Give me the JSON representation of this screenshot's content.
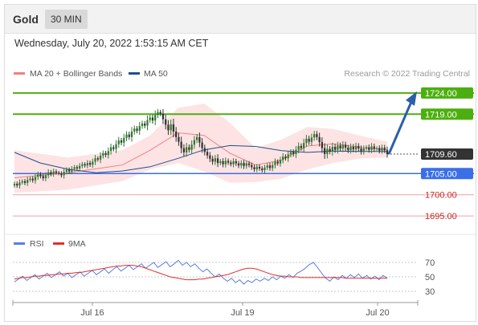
{
  "header": {
    "symbol": "Gold",
    "timeframe": "30 MIN"
  },
  "datetime": "Wednesday, July 20, 2022 1:53:15 AM CET",
  "colors": {
    "ma20": "#f08080",
    "ma50": "#1f4e8c",
    "bollinger_fill": "#fddede",
    "candle_up": "#2e7d32",
    "candle_down": "#333333",
    "resistance": "#4caf0f",
    "pivot": "#3a6fe8",
    "support": "#e04040",
    "current": "#333333",
    "arrow": "#2c5fa8",
    "rsi": "#5b7fe0",
    "rsi_ma": "#e03030"
  },
  "legend": {
    "ma20_label": "MA 20 + Bollinger Bands",
    "ma50_label": "MA 50"
  },
  "copyright": "Research © 2022 Trading Central",
  "chart_data": [
    {
      "type": "candlestick",
      "title": "",
      "x_tick_labels": [
        "Jul 16",
        "Jul 19",
        "Jul 20"
      ],
      "ylim": [
        1692,
        1727
      ],
      "levels": [
        {
          "value": 1724.0,
          "label": "1724.00",
          "kind": "resistance"
        },
        {
          "value": 1719.0,
          "label": "1719.00",
          "kind": "resistance"
        },
        {
          "value": 1709.6,
          "label": "1709.60",
          "kind": "current"
        },
        {
          "value": 1705.0,
          "label": "1705.00",
          "kind": "pivot"
        },
        {
          "value": 1700.0,
          "label": "1700.00",
          "kind": "support"
        },
        {
          "value": 1695.0,
          "label": "1695.00",
          "kind": "support"
        }
      ],
      "close": [
        1702.6,
        1702.2,
        1702.9,
        1703.2,
        1702.8,
        1703.5,
        1703.8,
        1703.4,
        1704.2,
        1704.8,
        1704.4,
        1703.9,
        1704.6,
        1705.3,
        1704.9,
        1705.5,
        1705.2,
        1705.0,
        1704.6,
        1705.4,
        1705.9,
        1705.5,
        1706.1,
        1706.5,
        1706.2,
        1706.8,
        1707.2,
        1706.9,
        1707.5,
        1707.1,
        1707.8,
        1708.6,
        1708.3,
        1709.2,
        1709.8,
        1709.4,
        1710.3,
        1711.2,
        1710.8,
        1711.9,
        1712.8,
        1712.3,
        1713.4,
        1714.2,
        1713.6,
        1714.9,
        1715.6,
        1715.1,
        1716.2,
        1716.8,
        1716.3,
        1717.6,
        1718.2,
        1717.5,
        1718.8,
        1719.5,
        1719.1,
        1717.8,
        1716.5,
        1715.2,
        1716.6,
        1714.9,
        1713.6,
        1712.5,
        1711.0,
        1710.0,
        1711.2,
        1710.6,
        1711.8,
        1712.9,
        1713.6,
        1712.3,
        1711.0,
        1710.1,
        1709.3,
        1708.5,
        1707.8,
        1708.6,
        1707.5,
        1707.9,
        1707.2,
        1708.0,
        1707.6,
        1707.2,
        1707.9,
        1707.4,
        1706.9,
        1707.5,
        1706.8,
        1707.4,
        1707.0,
        1706.5,
        1706.0,
        1706.6,
        1706.2,
        1705.8,
        1706.4,
        1706.9,
        1706.3,
        1707.0,
        1707.8,
        1707.4,
        1708.2,
        1709.0,
        1708.6,
        1709.5,
        1710.1,
        1709.6,
        1710.6,
        1711.5,
        1711.0,
        1712.2,
        1713.2,
        1712.5,
        1713.5,
        1714.3,
        1713.6,
        1712.4,
        1711.0,
        1709.6,
        1710.8,
        1710.2,
        1711.3,
        1710.6,
        1711.6,
        1710.9,
        1711.8,
        1711.1,
        1710.5,
        1711.3,
        1710.7,
        1711.5,
        1710.9,
        1710.2,
        1710.9,
        1711.2,
        1710.6,
        1711.4,
        1710.8,
        1711.0,
        1710.4,
        1711.1,
        1710.5,
        1709.6
      ],
      "series": [
        {
          "name": "MA 20 + Bollinger Bands",
          "ma_points": [
            [
              0,
              1704.0
            ],
            [
              25,
              1705.2
            ],
            [
              50,
              1707.0
            ],
            [
              63,
              1710.5
            ],
            [
              76,
              1714.6
            ],
            [
              88,
              1714.0
            ],
            [
              100,
              1709.8
            ],
            [
              112,
              1707.0
            ],
            [
              124,
              1708.2
            ],
            [
              136,
              1711.5
            ],
            [
              148,
              1712.0
            ],
            [
              160,
              1711.2
            ],
            [
              173,
              1710.6
            ]
          ],
          "upper_points": [
            [
              0,
              1710.5
            ],
            [
              25,
              1708.8
            ],
            [
              50,
              1710.5
            ],
            [
              63,
              1714.0
            ],
            [
              76,
              1720.5
            ],
            [
              88,
              1721.5
            ],
            [
              100,
              1717.0
            ],
            [
              112,
              1711.0
            ],
            [
              124,
              1713.0
            ],
            [
              136,
              1716.0
            ],
            [
              148,
              1715.5
            ],
            [
              160,
              1714.0
            ],
            [
              173,
              1712.5
            ]
          ],
          "lower_points": [
            [
              0,
              1700.5
            ],
            [
              25,
              1701.2
            ],
            [
              50,
              1703.2
            ],
            [
              63,
              1706.0
            ],
            [
              76,
              1707.5
            ],
            [
              88,
              1705.5
            ],
            [
              100,
              1702.8
            ],
            [
              112,
              1703.0
            ],
            [
              124,
              1703.8
            ],
            [
              136,
              1706.0
            ],
            [
              148,
              1707.5
            ],
            [
              160,
              1708.5
            ],
            [
              173,
              1708.8
            ]
          ]
        },
        {
          "name": "MA 50",
          "points": [
            [
              0,
              1710.0
            ],
            [
              12,
              1707.5
            ],
            [
              25,
              1706.0
            ],
            [
              38,
              1705.2
            ],
            [
              50,
              1705.6
            ],
            [
              63,
              1706.6
            ],
            [
              76,
              1708.6
            ],
            [
              88,
              1710.6
            ],
            [
              100,
              1711.6
            ],
            [
              112,
              1711.4
            ],
            [
              124,
              1710.4
            ],
            [
              136,
              1710.0
            ],
            [
              148,
              1710.3
            ],
            [
              160,
              1710.2
            ],
            [
              173,
              1710.2
            ]
          ]
        }
      ],
      "projection": {
        "from_value": 1709.6,
        "to_value": 1724.0
      }
    },
    {
      "type": "line",
      "title": "",
      "yticks": [
        30,
        50,
        70
      ],
      "ylim": [
        20,
        80
      ],
      "series": [
        {
          "name": "RSI",
          "values": [
            43,
            47,
            51,
            45,
            49,
            53,
            47,
            51,
            55,
            49,
            53,
            57,
            51,
            55,
            49,
            53,
            57,
            51,
            55,
            59,
            53,
            57,
            61,
            55,
            60,
            64,
            58,
            62,
            66,
            60,
            64,
            68,
            62,
            66,
            70,
            63,
            67,
            71,
            64,
            68,
            73,
            66,
            70,
            64,
            68,
            62,
            57,
            61,
            55,
            50,
            54,
            48,
            44,
            48,
            42,
            46,
            40,
            45,
            42,
            47,
            44,
            48,
            45,
            50,
            46,
            51,
            48,
            53,
            49,
            55,
            58,
            62,
            67,
            70,
            63,
            55,
            48,
            44,
            50,
            46,
            52,
            48,
            53,
            49,
            54,
            48,
            52,
            47,
            51,
            46,
            52,
            48
          ]
        },
        {
          "name": "9MA",
          "values": [
            47,
            48,
            49,
            49,
            50,
            51,
            51,
            52,
            52,
            53,
            53,
            54,
            54,
            55,
            55,
            56,
            56,
            57,
            58,
            59,
            60,
            61,
            62,
            63,
            64,
            65,
            65,
            66,
            66,
            66,
            65,
            64,
            62,
            60,
            58,
            56,
            54,
            52,
            50,
            49,
            48,
            47,
            46,
            46,
            46,
            47,
            47,
            48,
            49,
            50,
            51,
            52,
            53,
            55,
            57,
            59,
            61,
            62,
            62,
            61,
            59,
            57,
            55,
            53,
            52,
            51,
            51,
            50,
            50,
            50,
            49,
            49,
            49,
            49,
            49,
            49,
            49,
            49,
            49,
            49,
            49,
            48,
            48,
            48,
            48,
            48,
            48,
            48,
            48,
            48,
            48,
            48
          ]
        }
      ]
    }
  ]
}
